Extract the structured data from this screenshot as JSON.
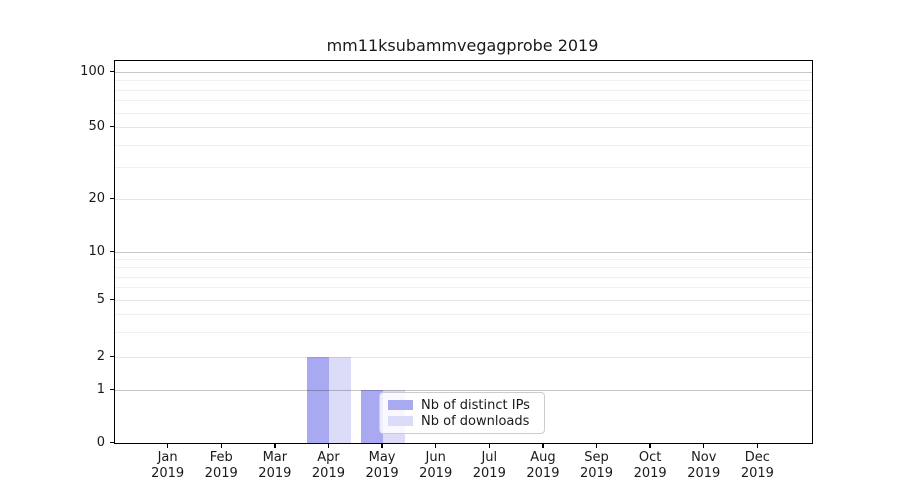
{
  "chart_data": {
    "type": "bar",
    "title": "mm11ksubammvegagprobe 2019",
    "categories": [
      "Jan",
      "Feb",
      "Mar",
      "Apr",
      "May",
      "Jun",
      "Jul",
      "Aug",
      "Sep",
      "Oct",
      "Nov",
      "Dec"
    ],
    "category_year": "2019",
    "series": [
      {
        "name": "Nb of distinct IPs",
        "color": "#a9a9f2",
        "values": [
          0,
          0,
          0,
          2,
          1,
          0,
          0,
          0,
          0,
          0,
          0,
          0
        ]
      },
      {
        "name": "Nb of downloads",
        "color": "#dcdcf8",
        "values": [
          0,
          0,
          0,
          2,
          1,
          0,
          0,
          0,
          0,
          0,
          0,
          0
        ]
      }
    ],
    "yticks": [
      0,
      1,
      2,
      5,
      10,
      20,
      50,
      100
    ],
    "yscale": "symlog",
    "ylim": [
      0,
      130
    ],
    "xlabel": "",
    "ylabel": "",
    "grid": "horizontal",
    "legend_position": "lower-right-of-center",
    "colors": {
      "axis_frame": "#000000",
      "grid_decade": "#c6c6c6",
      "grid_labeled_minor": "#e6e6e6",
      "grid_minor": "#f0f0f0",
      "text": "#1a1a1a",
      "legend_border": "#cccccc"
    }
  }
}
